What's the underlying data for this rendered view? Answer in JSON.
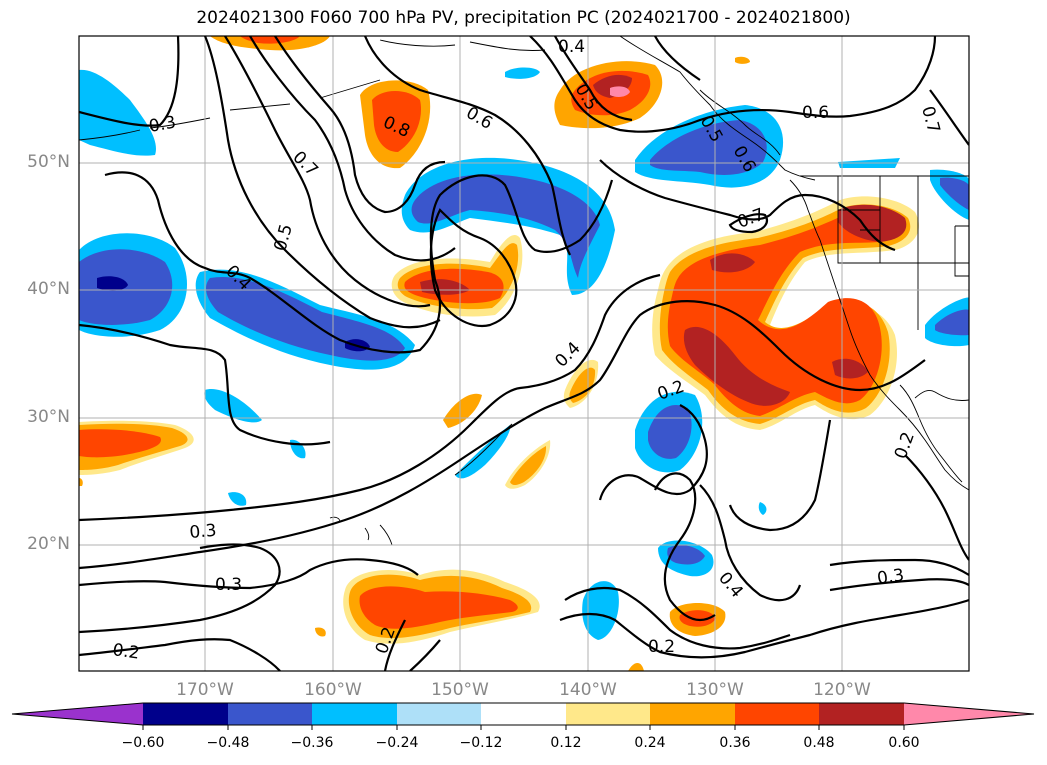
{
  "title": "2024021300 F060 700 hPa PV, precipitation PC (2024021700 - 2024021800)",
  "lat_labels": [
    "50°N",
    "40°N",
    "30°N",
    "20°N"
  ],
  "lon_labels": [
    "170°W",
    "160°W",
    "150°W",
    "140°W",
    "130°W",
    "120°W"
  ],
  "contour_labels": [
    "0.3",
    "0.4",
    "0.5",
    "0.6",
    "0.7",
    "0.8",
    "0.6",
    "0.4",
    "0.5",
    "0.7",
    "0.6",
    "0.7",
    "0.5",
    "0.4",
    "0.2",
    "0.3",
    "0.3",
    "0.2",
    "0.2",
    "0.2",
    "0.4",
    "0.3",
    "0.2"
  ],
  "colorbar": {
    "ticks": [
      "−0.60",
      "−0.48",
      "−0.36",
      "−0.24",
      "−0.12",
      "0.12",
      "0.24",
      "0.36",
      "0.48",
      "0.60"
    ],
    "colors": [
      "#9a32cd",
      "#00008b",
      "#3a56cc",
      "#00bfff",
      "#aee0f8",
      "#ffffff",
      "#ffe88a",
      "#ffa500",
      "#ff4500",
      "#b22222",
      "#ff88aa"
    ]
  }
}
